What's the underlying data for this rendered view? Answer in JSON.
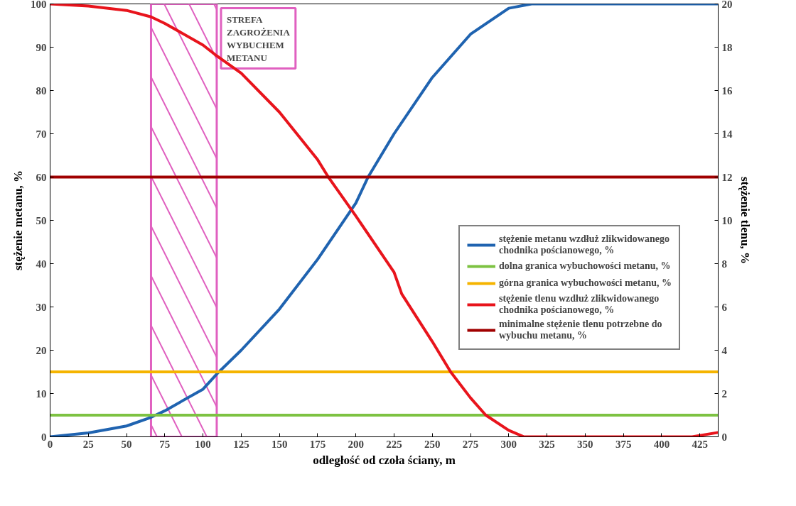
{
  "chart_data": {
    "type": "line",
    "xlabel": "odległość od czoła ściany, m",
    "ylabel": "stężenie metanu, %",
    "y2label": "stężenie tlenu, %",
    "xlim": [
      0,
      437
    ],
    "xticks": [
      0,
      25,
      50,
      75,
      100,
      125,
      150,
      175,
      200,
      225,
      250,
      275,
      300,
      325,
      350,
      375,
      400,
      425
    ],
    "ylim": [
      0,
      100
    ],
    "yticks": [
      0,
      10,
      20,
      30,
      40,
      50,
      60,
      70,
      80,
      90,
      100
    ],
    "y2lim": [
      0,
      20
    ],
    "y2ticks": [
      0,
      2,
      4,
      6,
      8,
      10,
      12,
      14,
      16,
      18,
      20
    ],
    "grid": false,
    "legend": "right",
    "bands": [
      {
        "axis": "x",
        "from": 66,
        "to": 109,
        "label": "STREFA ZAGROŻENIA WYBUCHEM METANU",
        "color": "#e060c0"
      }
    ],
    "series": [
      {
        "name": "stężenie metanu wzdłuż zlikwidowanego chodnika pościanowego, %",
        "color": "#1f63b0",
        "x": [
          0,
          25,
          50,
          66,
          75,
          100,
          109,
          125,
          150,
          175,
          200,
          208,
          225,
          250,
          275,
          300,
          315,
          437
        ],
        "values": [
          0,
          0.9,
          2.5,
          4.5,
          6,
          11,
          14.5,
          20,
          29.5,
          41,
          54,
          60,
          70,
          83,
          93,
          99,
          100,
          100
        ]
      },
      {
        "name": "dolna granica wybuchowości metanu, %",
        "color": "#7dc242",
        "x": [
          0,
          437
        ],
        "values": [
          5,
          5
        ]
      },
      {
        "name": "górna granica wybuchowości metanu, %",
        "color": "#f5b400",
        "x": [
          0,
          437
        ],
        "values": [
          15,
          15
        ]
      },
      {
        "name": "stężenie tlenu wzdłuż zlikwidowanego chodnika pościanowego, %",
        "color": "#e8141c",
        "axis": "y2",
        "x": [
          0,
          25,
          50,
          66,
          75,
          100,
          109,
          125,
          150,
          175,
          182,
          200,
          225,
          230,
          250,
          262,
          275,
          285,
          300,
          310,
          420,
          437
        ],
        "values": [
          20,
          19.9,
          19.7,
          19.4,
          19.1,
          18.1,
          17.6,
          16.8,
          15,
          12.8,
          12,
          10.2,
          7.6,
          6.6,
          4.4,
          3,
          1.8,
          1,
          0.3,
          0,
          0,
          0.2
        ]
      },
      {
        "name": "minimalne stężenie tlenu potrzebne do wybuchu metanu, %",
        "color": "#a00000",
        "axis": "y2",
        "x": [
          0,
          437
        ],
        "values": [
          12,
          12
        ]
      }
    ]
  }
}
